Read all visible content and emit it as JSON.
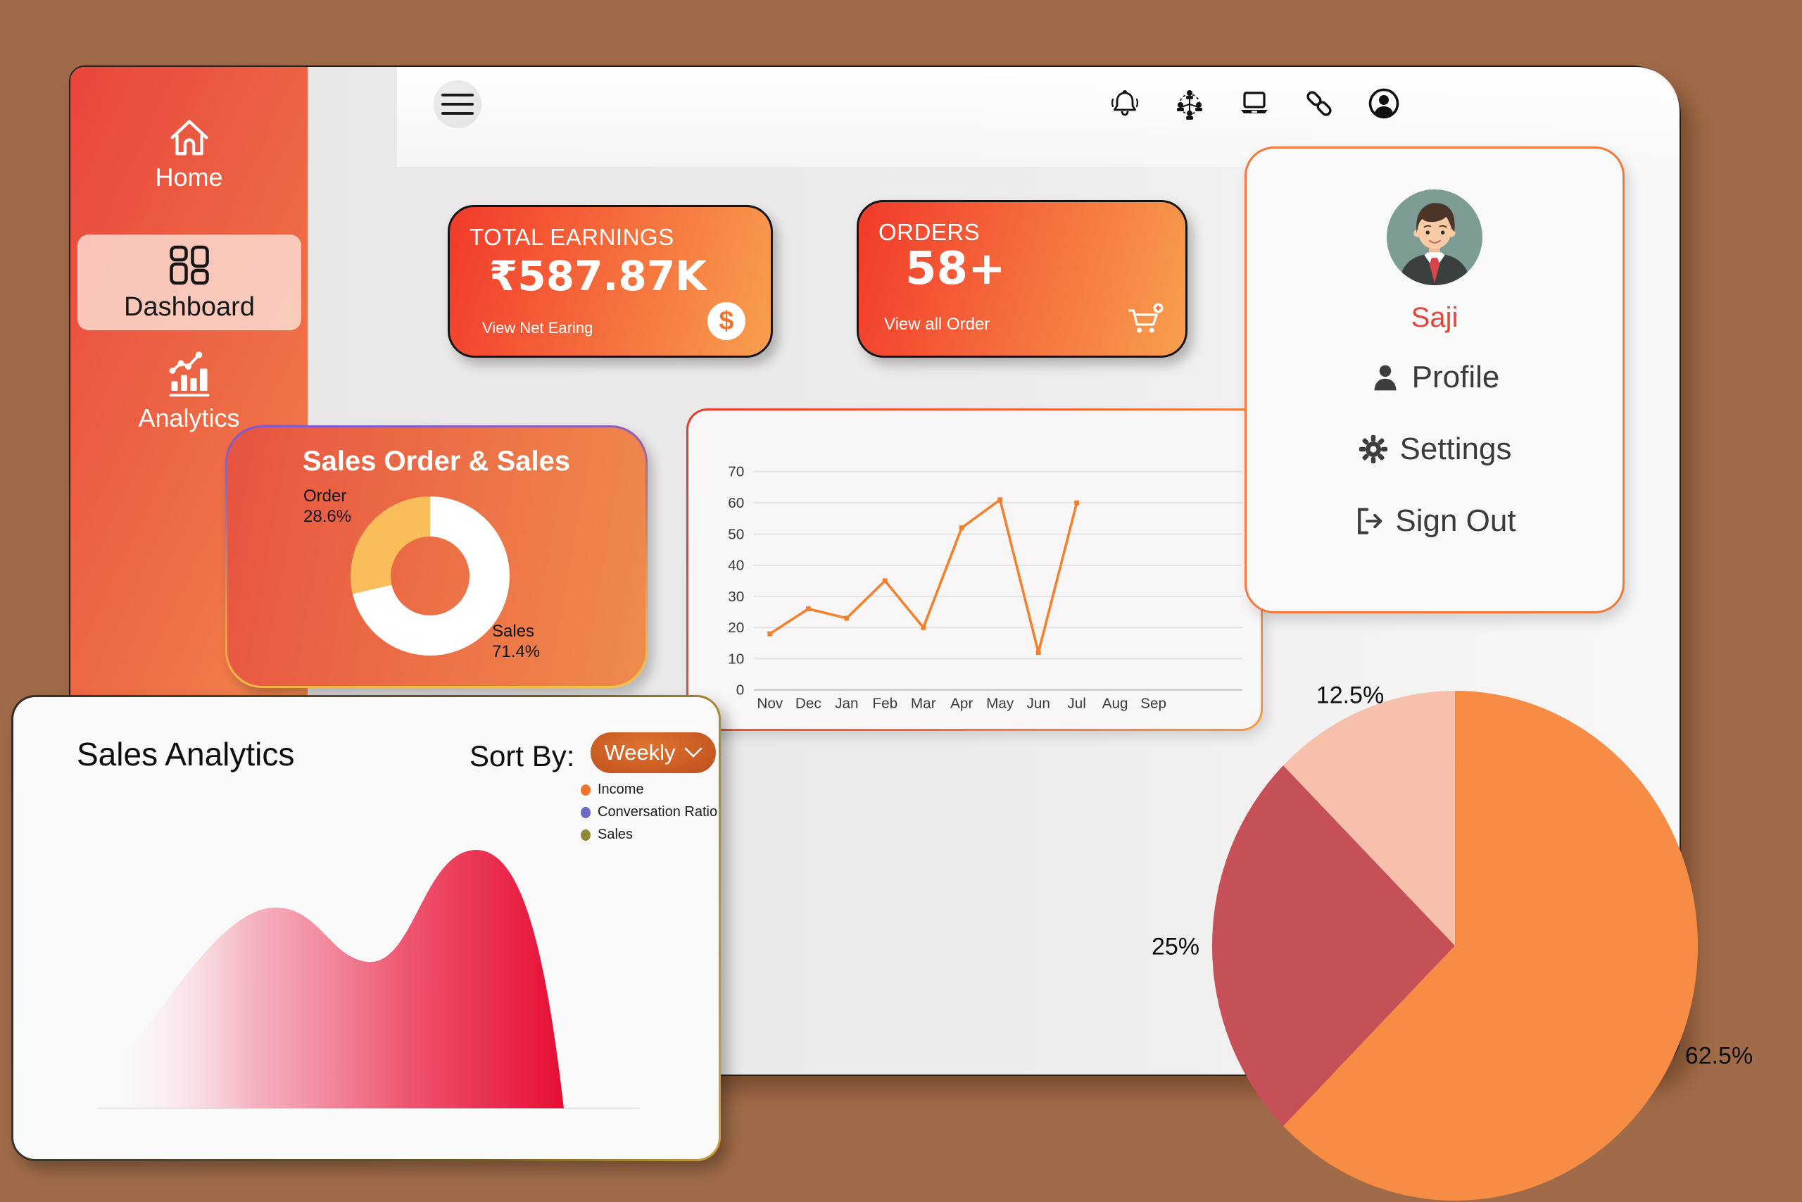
{
  "colors": {
    "background": "#A06B48",
    "sidebar_gradient": [
      "#E9463C",
      "#F2A156"
    ],
    "stat_card_gradient": [
      "#F23A2B",
      "#F89F4D"
    ],
    "accent_orange": "#F4783A",
    "profile_name": "#E2453C",
    "line_color": "#F5802C"
  },
  "sidebar": {
    "items": [
      {
        "label": "Home",
        "icon": "home-icon",
        "active": false
      },
      {
        "label": "Dashboard",
        "icon": "dashboard-grid-icon",
        "active": true
      },
      {
        "label": "Analytics",
        "icon": "analytics-bars-icon",
        "active": false
      }
    ]
  },
  "topbar": {
    "icons": [
      {
        "name": "bell-icon"
      },
      {
        "name": "network-icon"
      },
      {
        "name": "laptop-icon"
      },
      {
        "name": "link-icon"
      },
      {
        "name": "user-profile-icon"
      }
    ]
  },
  "stats": {
    "earnings": {
      "title": "TOTAL EARNINGS",
      "value": "₹587.87K",
      "link_label": "View Net Earing",
      "badge_icon": "dollar-icon"
    },
    "orders": {
      "title": "ORDERS",
      "value": "58+",
      "link_label": "View all Order",
      "badge_icon": "cart-plus-icon"
    }
  },
  "profile": {
    "name": "Saji",
    "menu": [
      {
        "label": "Profile",
        "icon": "person-icon"
      },
      {
        "label": "Settings",
        "icon": "gear-icon"
      },
      {
        "label": "Sign Out",
        "icon": "sign-out-icon"
      }
    ]
  },
  "sales_analytics": {
    "title": "Sales Analytics",
    "sort_by_label": "Sort By:",
    "sort_value": "Weekly",
    "legend": [
      {
        "label": "Income",
        "color": "#F0742E"
      },
      {
        "label": "Conversation Ratio",
        "color": "#6B68C8"
      },
      {
        "label": "Sales",
        "color": "#8F8A35"
      }
    ]
  },
  "chart_data": [
    {
      "id": "sales-order-donut",
      "type": "pie",
      "donut": true,
      "title": "Sales Order & Sales",
      "start_angle": "top",
      "direction": "clockwise",
      "slices": [
        {
          "label": "Sales",
          "value": 71.4,
          "color": "#FFFFFF"
        },
        {
          "label": "Order",
          "value": 28.6,
          "color": "#F9BD59"
        }
      ],
      "callouts": [
        {
          "title": "Order",
          "value": "28.6%"
        },
        {
          "title": "Sales",
          "value": "71.4%"
        }
      ],
      "legend_position": "labels-on-chart"
    },
    {
      "id": "monthly-trend-line",
      "type": "line",
      "x": [
        "Nov",
        "Dec",
        "Jan",
        "Feb",
        "Mar",
        "Apr",
        "May",
        "Jun",
        "Jul",
        "Aug",
        "Sep"
      ],
      "series": [
        {
          "name": "value",
          "values": [
            18,
            26,
            23,
            35,
            20,
            52,
            61,
            12,
            60,
            null,
            null
          ]
        }
      ],
      "ylim": [
        0,
        70
      ],
      "ytick_step": 10,
      "line_color": "#F5802C",
      "grid": true,
      "legend_position": "none"
    },
    {
      "id": "sales-analytics-area",
      "type": "area",
      "title": "Sales Analytics",
      "legend": [
        "Income",
        "Conversation Ratio",
        "Sales"
      ],
      "fill_gradient": [
        "rgba(255,255,255,0)",
        "#F4AAB9",
        "#EE5570",
        "#E60E34"
      ],
      "axes_shown": false
    },
    {
      "id": "share-pie",
      "type": "pie",
      "start_angle": "top",
      "direction": "clockwise",
      "slices": [
        {
          "label": "62.5%",
          "value": 62.5,
          "color": "#F78C44"
        },
        {
          "label": "25%",
          "value": 25,
          "color": "#C65058"
        },
        {
          "label": "12.5%",
          "value": 12.5,
          "color": "#F6C0AB"
        }
      ],
      "legend_position": "labels-outside"
    }
  ]
}
